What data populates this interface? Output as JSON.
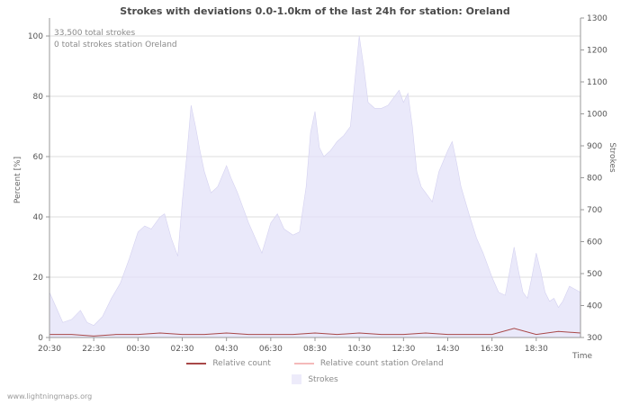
{
  "watermark": "www.lightningmaps.org",
  "chart_data": {
    "type": "area",
    "title": "Strokes with deviations 0.0-1.0km of the last 24h for station: Oreland",
    "annotations": [
      "33,500 total strokes",
      "0 total strokes station Oreland"
    ],
    "ylabel_left": "Percent  [%]",
    "ylabel_right": "Strokes",
    "xlabel": "Time",
    "x_tick_labels": [
      "20:30",
      "22:30",
      "00:30",
      "02:30",
      "04:30",
      "06:30",
      "08:30",
      "10:30",
      "12:30",
      "14:30",
      "16:30",
      "18:30"
    ],
    "y_left_ticks": [
      0,
      20,
      40,
      60,
      80,
      100
    ],
    "y_right_ticks": [
      300,
      400,
      500,
      600,
      700,
      800,
      900,
      1000,
      1100,
      1200,
      1300
    ],
    "y_left_range": [
      0,
      100
    ],
    "y_right_range": [
      300,
      1300
    ],
    "grid": "horizontal",
    "legend_position": "bottom",
    "colors": {
      "grid": "#dcdcdc",
      "axis": "#999999",
      "title": "#4a4a4a"
    },
    "series": [
      {
        "name": "Strokes",
        "type": "area",
        "color": "#e3e1f8",
        "x": [
          0,
          0.3,
          0.6,
          1,
          1.4,
          1.7,
          2,
          2.4,
          2.8,
          3.2,
          3.6,
          4,
          4.3,
          4.6,
          5,
          5.2,
          5.5,
          5.8,
          6,
          6.2,
          6.4,
          6.6,
          6.8,
          7,
          7.3,
          7.6,
          8,
          8.2,
          8.5,
          8.8,
          9,
          9.3,
          9.6,
          10,
          10.3,
          10.6,
          11,
          11.3,
          11.6,
          11.8,
          12,
          12.2,
          12.4,
          12.7,
          13,
          13.3,
          13.6,
          13.8,
          14,
          14.2,
          14.4,
          14.7,
          15,
          15.3,
          15.6,
          15.8,
          16,
          16.2,
          16.4,
          16.6,
          16.8,
          17,
          17.3,
          17.6,
          18,
          18.2,
          18.4,
          18.6,
          18.8,
          19,
          19.3,
          19.6,
          20,
          20.3,
          20.6,
          21,
          21.2,
          21.4,
          21.6,
          21.8,
          22,
          22.2,
          22.4,
          22.6,
          22.8,
          23,
          23.2,
          23.5,
          24
        ],
        "values": [
          15,
          10,
          5,
          6,
          9,
          5,
          4,
          7,
          13,
          18,
          26,
          35,
          37,
          36,
          40,
          41,
          33,
          27,
          45,
          60,
          77,
          70,
          62,
          55,
          48,
          50,
          57,
          53,
          48,
          42,
          38,
          33,
          28,
          38,
          41,
          36,
          34,
          35,
          50,
          68,
          75,
          63,
          60,
          62,
          65,
          67,
          70,
          85,
          100,
          90,
          78,
          76,
          76,
          77,
          80,
          82,
          78,
          81,
          70,
          55,
          50,
          48,
          45,
          55,
          62,
          65,
          58,
          50,
          45,
          40,
          33,
          28,
          20,
          15,
          14,
          30,
          22,
          15,
          13,
          20,
          28,
          22,
          15,
          12,
          13,
          10,
          12,
          17,
          15
        ]
      },
      {
        "name": "Relative count",
        "type": "line",
        "color": "#a84848",
        "x": [
          0,
          1,
          2,
          3,
          4,
          5,
          6,
          7,
          8,
          9,
          10,
          11,
          12,
          13,
          14,
          15,
          16,
          17,
          18,
          19,
          20,
          21,
          22,
          23,
          24
        ],
        "values": [
          1,
          1,
          0.5,
          1,
          1,
          1.5,
          1,
          1,
          1.5,
          1,
          1,
          1,
          1.5,
          1,
          1.5,
          1,
          1,
          1.5,
          1,
          1,
          1,
          3,
          1,
          2,
          1.5
        ]
      },
      {
        "name": "Relative count station Oreland",
        "type": "line",
        "color": "#f4baba",
        "x": [
          0,
          24
        ],
        "values": [
          0,
          0
        ]
      }
    ]
  }
}
